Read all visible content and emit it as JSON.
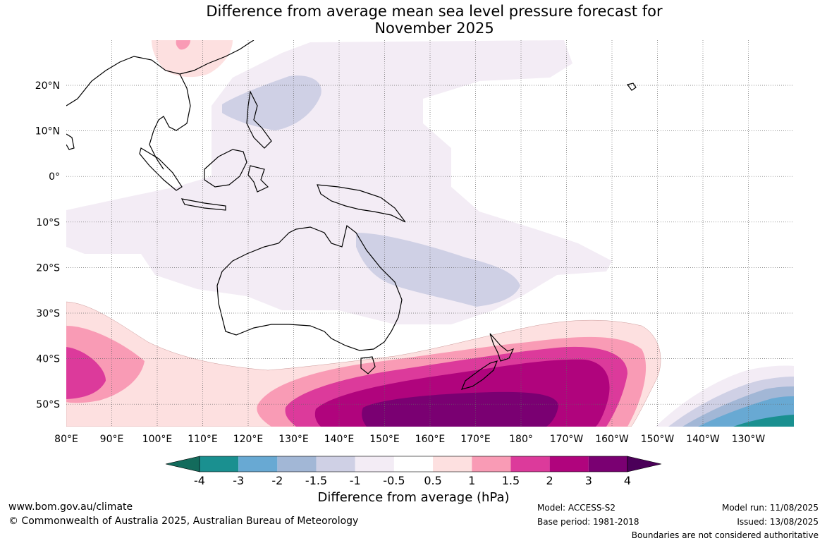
{
  "title_line1": "Difference from average mean sea level pressure forecast for",
  "title_line2": "November 2025",
  "lon_labels": [
    "80°E",
    "90°E",
    "100°E",
    "110°E",
    "120°E",
    "130°E",
    "140°E",
    "150°E",
    "160°E",
    "170°E",
    "180°",
    "170°W",
    "160°W",
    "150°W",
    "140°W",
    "130°W"
  ],
  "lat_labels": [
    "20°N",
    "10°N",
    "0°",
    "10°S",
    "20°S",
    "30°S",
    "40°S",
    "50°S"
  ],
  "colorbar": {
    "title": "Difference from average (hPa)",
    "tick_labels": [
      "-4",
      "-3",
      "-2",
      "-1.5",
      "-1",
      "-0.5",
      "0.5",
      "1",
      "1.5",
      "2",
      "3",
      "4"
    ],
    "colors": [
      "#136b5c",
      "#1a9090",
      "#68a9d3",
      "#a2b7d6",
      "#cfd0e5",
      "#f3ecf5",
      "#ffffff",
      "#fde0e0",
      "#f99bb5",
      "#dc3a9b",
      "#b0047d",
      "#7a0072",
      "#4b0059"
    ]
  },
  "footer": {
    "website": "www.bom.gov.au/climate",
    "copyright": "© Commonwealth of Australia 2025, Australian Bureau of Meteorology",
    "model": "Model: ACCESS-S2",
    "base_period": "Base period: 1981-2018",
    "model_run": "Model run: 11/08/2025",
    "issued": "Issued: 13/08/2025",
    "disclaimer": "Boundaries are not considered authoritative"
  }
}
